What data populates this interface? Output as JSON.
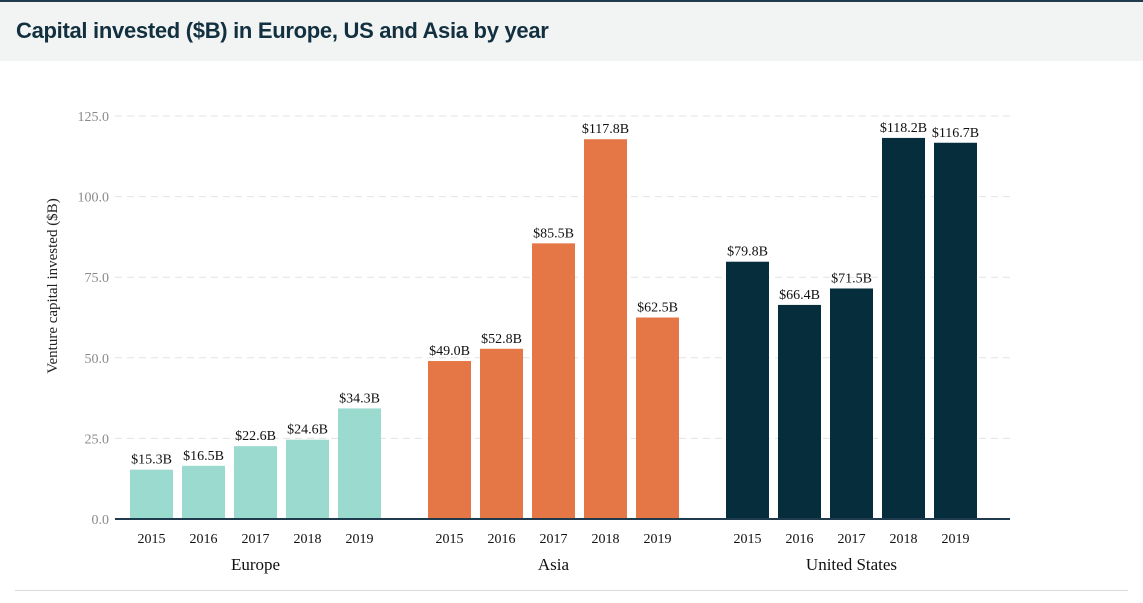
{
  "header": {
    "title": "Capital invested ($B) in Europe, US and Asia by year"
  },
  "chart_data": {
    "type": "bar",
    "title": "Capital invested ($B) in Europe, US and Asia by year",
    "ylabel": "Venture capital invested ($B)",
    "xlabel": "",
    "ylim": [
      0,
      125
    ],
    "yticks": [
      0,
      25,
      50,
      75,
      100,
      125
    ],
    "ytick_labels": [
      "0.0",
      "25.0",
      "50.0",
      "75.0",
      "100.0",
      "125.0"
    ],
    "grid": "horizontal dashed",
    "groups": [
      {
        "name": "Europe",
        "color": "#9bdbcf",
        "categories": [
          "2015",
          "2016",
          "2017",
          "2018",
          "2019"
        ],
        "values": [
          15.3,
          16.5,
          22.6,
          24.6,
          34.3
        ],
        "labels": [
          "$15.3B",
          "$16.5B",
          "$22.6B",
          "$24.6B",
          "$34.3B"
        ]
      },
      {
        "name": "Asia",
        "color": "#e57646",
        "categories": [
          "2015",
          "2016",
          "2017",
          "2018",
          "2019"
        ],
        "values": [
          49.0,
          52.8,
          85.5,
          117.8,
          62.5
        ],
        "labels": [
          "$49.0B",
          "$52.8B",
          "$85.5B",
          "$117.8B",
          "$62.5B"
        ]
      },
      {
        "name": "United States",
        "color": "#062d3b",
        "categories": [
          "2015",
          "2016",
          "2017",
          "2018",
          "2019"
        ],
        "values": [
          79.8,
          66.4,
          71.5,
          118.2,
          116.7
        ],
        "labels": [
          "$79.8B",
          "$66.4B",
          "$71.5B",
          "$118.2B",
          "$116.7B"
        ]
      }
    ]
  }
}
